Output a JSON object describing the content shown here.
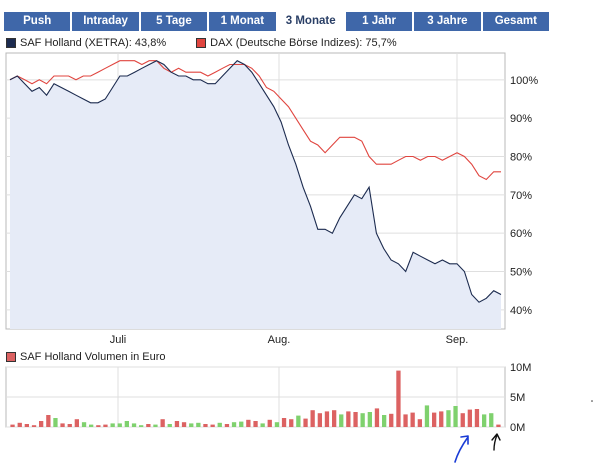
{
  "tabs": [
    {
      "label": "Push",
      "active": false
    },
    {
      "label": "Intraday",
      "active": false
    },
    {
      "label": "5 Tage",
      "active": false
    },
    {
      "label": "1 Monat",
      "active": false
    },
    {
      "label": "3 Monate",
      "active": true
    },
    {
      "label": "1 Jahr",
      "active": false
    },
    {
      "label": "3 Jahre",
      "active": false
    },
    {
      "label": "Gesamt",
      "active": false
    }
  ],
  "colors": {
    "tab_bg": "#3f67a9",
    "saf_line": "#1c2b4f",
    "saf_fill": "#e6ebf7",
    "dax_line": "#e0453f",
    "vol_up": "#7fd16e",
    "vol_down": "#dc6262",
    "grid": "#dfdfdf",
    "annotation": "#1a3cd6"
  },
  "legend": {
    "saf": "SAF Holland (XETRA): 43,8%",
    "dax": "DAX (Deutsche Börse Indizes): 75,7%",
    "volume": "SAF Holland Volumen in Euro"
  },
  "chart_data": [
    {
      "type": "line",
      "x_ticks": [
        "Juli",
        "Aug.",
        "Sep."
      ],
      "y_ticks": [
        "100%",
        "90%",
        "80%",
        "70%",
        "60%",
        "50%",
        "40%"
      ],
      "ylim": [
        35,
        107
      ],
      "y_ticks_values": [
        100,
        90,
        80,
        70,
        60,
        50,
        40
      ],
      "grid": true,
      "series": [
        {
          "name": "SAF Holland (XETRA): 43,8%",
          "values": [
            100,
            101,
            99,
            97,
            98,
            96,
            99,
            98,
            97,
            96,
            95,
            94,
            94,
            95,
            98,
            101,
            101,
            102,
            103,
            104,
            105,
            104,
            102,
            101,
            101,
            100,
            100,
            99,
            99,
            101,
            103,
            105,
            104,
            102,
            99,
            96,
            93,
            89,
            83,
            78,
            72,
            67,
            61,
            61,
            60,
            64,
            67,
            70,
            69,
            72,
            60,
            56,
            53,
            52,
            50,
            55,
            54,
            53,
            52,
            53,
            52,
            52,
            50,
            44,
            42,
            43,
            45,
            44
          ]
        },
        {
          "name": "DAX (Deutsche Börse Indizes): 75,7%",
          "values": [
            100,
            101,
            100,
            99,
            100,
            99,
            101,
            101,
            101,
            100,
            101,
            101,
            102,
            103,
            104,
            105,
            105,
            105,
            104,
            105,
            105,
            103,
            102,
            103,
            102,
            102,
            102,
            101,
            102,
            103,
            104,
            104,
            104,
            103,
            101,
            98,
            97,
            95,
            93,
            90,
            87,
            84,
            83,
            81,
            83,
            85,
            85,
            85,
            84,
            80,
            78,
            78,
            78,
            79,
            80,
            80,
            79,
            80,
            80,
            79,
            80,
            81,
            80,
            78,
            75,
            74,
            76,
            76
          ]
        }
      ]
    },
    {
      "type": "bar",
      "y_ticks": [
        "10M",
        "5M",
        "0M"
      ],
      "y_ticks_values": [
        10,
        5,
        0
      ],
      "ylim": [
        0,
        10
      ],
      "series": [
        {
          "name": "SAF Holland Volumen in Euro",
          "values": [
            0.4,
            0.7,
            0.5,
            0.3,
            1.0,
            2.0,
            1.5,
            0.6,
            0.5,
            1.3,
            0.8,
            0.4,
            0.3,
            0.4,
            0.6,
            0.6,
            1.0,
            0.6,
            0.3,
            0.5,
            0.4,
            1.3,
            0.5,
            1.0,
            0.8,
            0.6,
            0.7,
            0.5,
            0.4,
            0.7,
            0.5,
            0.8,
            0.9,
            1.2,
            1.0,
            0.6,
            1.2,
            0.8,
            1.5,
            1.3,
            1.9,
            1.4,
            2.8,
            2.3,
            2.6,
            2.8,
            2.1,
            2.6,
            2.5,
            2.3,
            2.5,
            3.1,
            2.0,
            2.2,
            9.4,
            2.1,
            2.4,
            1.3,
            3.6,
            2.4,
            2.6,
            2.8,
            3.5,
            2.3,
            2.9,
            3.0,
            2.1,
            2.3,
            0.4
          ],
          "up": [
            false,
            false,
            false,
            false,
            false,
            false,
            true,
            false,
            false,
            false,
            true,
            true,
            false,
            false,
            true,
            true,
            true,
            true,
            true,
            false,
            true,
            false,
            true,
            false,
            false,
            true,
            true,
            false,
            false,
            true,
            false,
            true,
            true,
            false,
            false,
            true,
            false,
            true,
            false,
            false,
            true,
            false,
            false,
            false,
            false,
            false,
            true,
            false,
            false,
            true,
            true,
            false,
            true,
            false,
            false,
            false,
            false,
            false,
            true,
            false,
            false,
            true,
            true,
            false,
            false,
            false,
            true,
            true,
            false
          ]
        }
      ]
    }
  ]
}
